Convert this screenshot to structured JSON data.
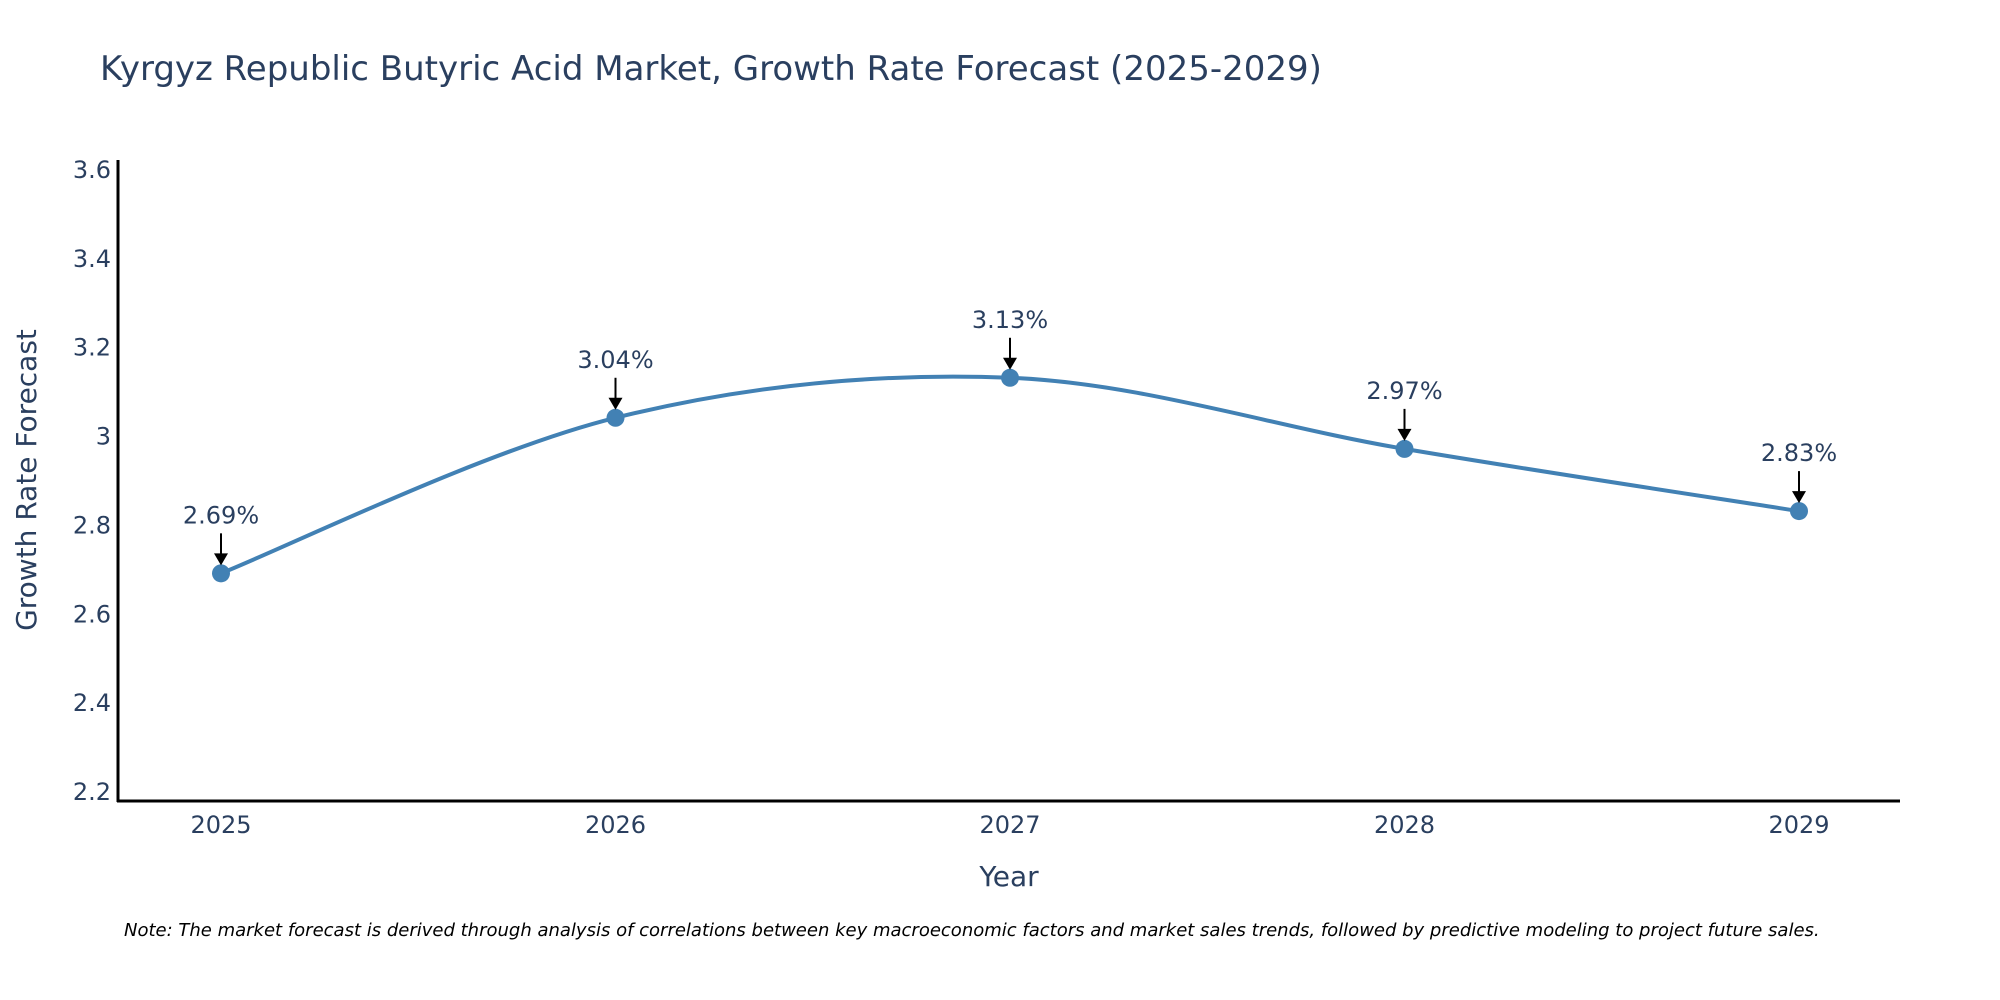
{
  "chart_data": {
    "type": "line",
    "title": "Kyrgyz Republic Butyric Acid Market, Growth Rate Forecast (2025-2029)",
    "xlabel": "Year",
    "ylabel": "Growth Rate Forecast",
    "categories": [
      "2025",
      "2026",
      "2027",
      "2028",
      "2029"
    ],
    "series": [
      {
        "name": "Growth Rate Forecast",
        "values": [
          2.69,
          3.04,
          3.13,
          2.97,
          2.83
        ],
        "labels": [
          "2.69%",
          "3.04%",
          "3.13%",
          "2.97%",
          "2.83%"
        ]
      }
    ],
    "ylim": [
      2.18,
      3.62
    ],
    "yticks": [
      2.2,
      2.4,
      2.6,
      2.8,
      3,
      3.2,
      3.4,
      3.6
    ],
    "ytick_labels": [
      "2.2",
      "2.4",
      "2.6",
      "2.8",
      "3",
      "3.2",
      "3.4",
      "3.6"
    ],
    "grid": false,
    "line_shape": "spline",
    "colors": {
      "series": "#4281b4",
      "text": "#2a3f5f",
      "axis": "#000000",
      "annotation_arrow": "#000000"
    }
  },
  "note": "Note: The market forecast is derived through analysis of correlations between key macroeconomic factors and market sales trends, followed by predictive modeling to project future sales."
}
